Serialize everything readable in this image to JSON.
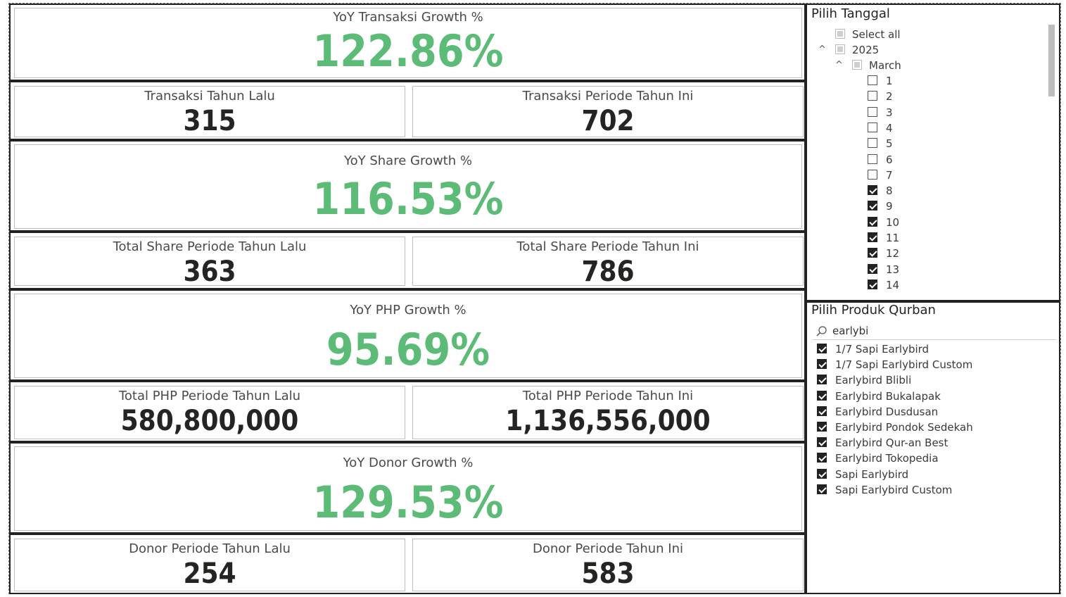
{
  "cards": {
    "transaksi": {
      "yoy_title": "YoY Transaksi Growth %",
      "yoy_value": "122.86%",
      "prev_title": "Transaksi Tahun Lalu",
      "prev_value": "315",
      "curr_title": "Transaksi Periode Tahun Ini",
      "curr_value": "702"
    },
    "share": {
      "yoy_title": "YoY Share Growth %",
      "yoy_value": "116.53%",
      "prev_title": "Total Share Periode Tahun Lalu",
      "prev_value": "363",
      "curr_title": "Total Share Periode Tahun Ini",
      "curr_value": "786"
    },
    "php": {
      "yoy_title": "YoY PHP Growth %",
      "yoy_value": "95.69%",
      "prev_title": "Total PHP Periode Tahun Lalu",
      "prev_value": "580,800,000",
      "curr_title": "Total PHP Periode Tahun Ini",
      "curr_value": "1,136,556,000"
    },
    "donor": {
      "yoy_title": "YoY Donor Growth %",
      "yoy_value": "129.53%",
      "prev_title": "Donor Periode Tahun Lalu",
      "prev_value": "254",
      "curr_title": "Donor Periode Tahun Ini",
      "curr_value": "583"
    }
  },
  "date_slicer": {
    "title": "Pilih Tanggal",
    "select_all": "Select all",
    "year": "2025",
    "month": "March",
    "days": [
      {
        "label": "1",
        "checked": false
      },
      {
        "label": "2",
        "checked": false
      },
      {
        "label": "3",
        "checked": false
      },
      {
        "label": "4",
        "checked": false
      },
      {
        "label": "5",
        "checked": false
      },
      {
        "label": "6",
        "checked": false
      },
      {
        "label": "7",
        "checked": false
      },
      {
        "label": "8",
        "checked": true
      },
      {
        "label": "9",
        "checked": true
      },
      {
        "label": "10",
        "checked": true
      },
      {
        "label": "11",
        "checked": true
      },
      {
        "label": "12",
        "checked": true
      },
      {
        "label": "13",
        "checked": true
      },
      {
        "label": "14",
        "checked": true
      }
    ]
  },
  "product_slicer": {
    "title": "Pilih Produk Qurban",
    "search_value": "earlybi",
    "items": [
      "1/7 Sapi Earlybird",
      "1/7 Sapi Earlybird Custom",
      "Earlybird Blibli",
      "Earlybird Bukalapak",
      "Earlybird Dusdusan",
      "Earlybird Pondok Sedekah",
      "Earlybird Qur-an Best",
      "Earlybird Tokopedia",
      "Sapi Earlybird",
      "Sapi Earlybird Custom"
    ]
  },
  "colors": {
    "growth_green": "#5dbb78",
    "value_dark": "#252423"
  }
}
